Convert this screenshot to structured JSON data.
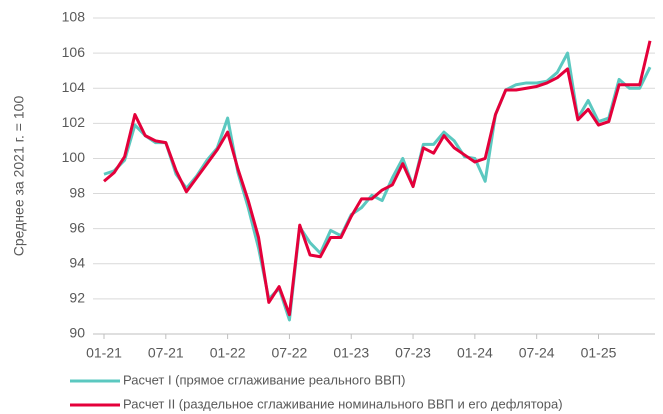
{
  "chart_data": {
    "type": "line",
    "y_label": "Среднее за 2021 г. = 100",
    "categories": [
      "01-21",
      null,
      null,
      null,
      null,
      null,
      "07-21",
      null,
      null,
      null,
      null,
      null,
      "01-22",
      null,
      null,
      null,
      null,
      null,
      "07-22",
      null,
      null,
      null,
      null,
      null,
      "01-23",
      null,
      null,
      null,
      null,
      null,
      "07-23",
      null,
      null,
      null,
      null,
      null,
      "01-24",
      null,
      null,
      null,
      null,
      null,
      "07-24",
      null,
      null,
      null,
      null,
      null,
      "01-25",
      null,
      null,
      null,
      null,
      null
    ],
    "series": [
      {
        "name": "Расчет I (прямое сглаживание реального ВВП)",
        "color": "#5bc8c0",
        "values": [
          99.1,
          99.3,
          99.9,
          101.9,
          101.3,
          100.9,
          100.9,
          99.1,
          98.3,
          99.0,
          99.9,
          100.6,
          102.3,
          99.2,
          97.2,
          94.9,
          92.0,
          92.6,
          90.8,
          96.1,
          95.2,
          94.6,
          95.9,
          95.6,
          96.8,
          97.2,
          97.9,
          97.6,
          98.9,
          100.0,
          98.4,
          100.8,
          100.8,
          101.5,
          101.0,
          100.1,
          100.0,
          98.7,
          102.5,
          103.9,
          104.2,
          104.3,
          104.3,
          104.4,
          104.9,
          106.0,
          102.3,
          103.3,
          102.1,
          102.3,
          104.5,
          104.0,
          104.0,
          105.2
        ]
      },
      {
        "name": "Расчет II (раздельное сглаживание номинального ВВП и его дефлятора)",
        "color": "#e4003a",
        "values": [
          98.7,
          99.2,
          100.1,
          102.5,
          101.3,
          101.0,
          100.9,
          99.3,
          98.1,
          98.9,
          99.7,
          100.5,
          101.5,
          99.4,
          97.6,
          95.5,
          91.8,
          92.7,
          91.1,
          96.2,
          94.5,
          94.4,
          95.5,
          95.5,
          96.7,
          97.7,
          97.7,
          98.2,
          98.5,
          99.7,
          98.4,
          100.6,
          100.3,
          101.3,
          100.6,
          100.2,
          99.8,
          100.0,
          102.5,
          103.9,
          103.9,
          104.0,
          104.1,
          104.3,
          104.6,
          105.1,
          102.2,
          102.8,
          101.9,
          102.1,
          104.2,
          104.2,
          104.2,
          106.7
        ]
      }
    ],
    "ylim": [
      90,
      108
    ],
    "yticks": [
      90,
      92,
      94,
      96,
      98,
      100,
      102,
      104,
      106,
      108
    ],
    "grid": true
  }
}
